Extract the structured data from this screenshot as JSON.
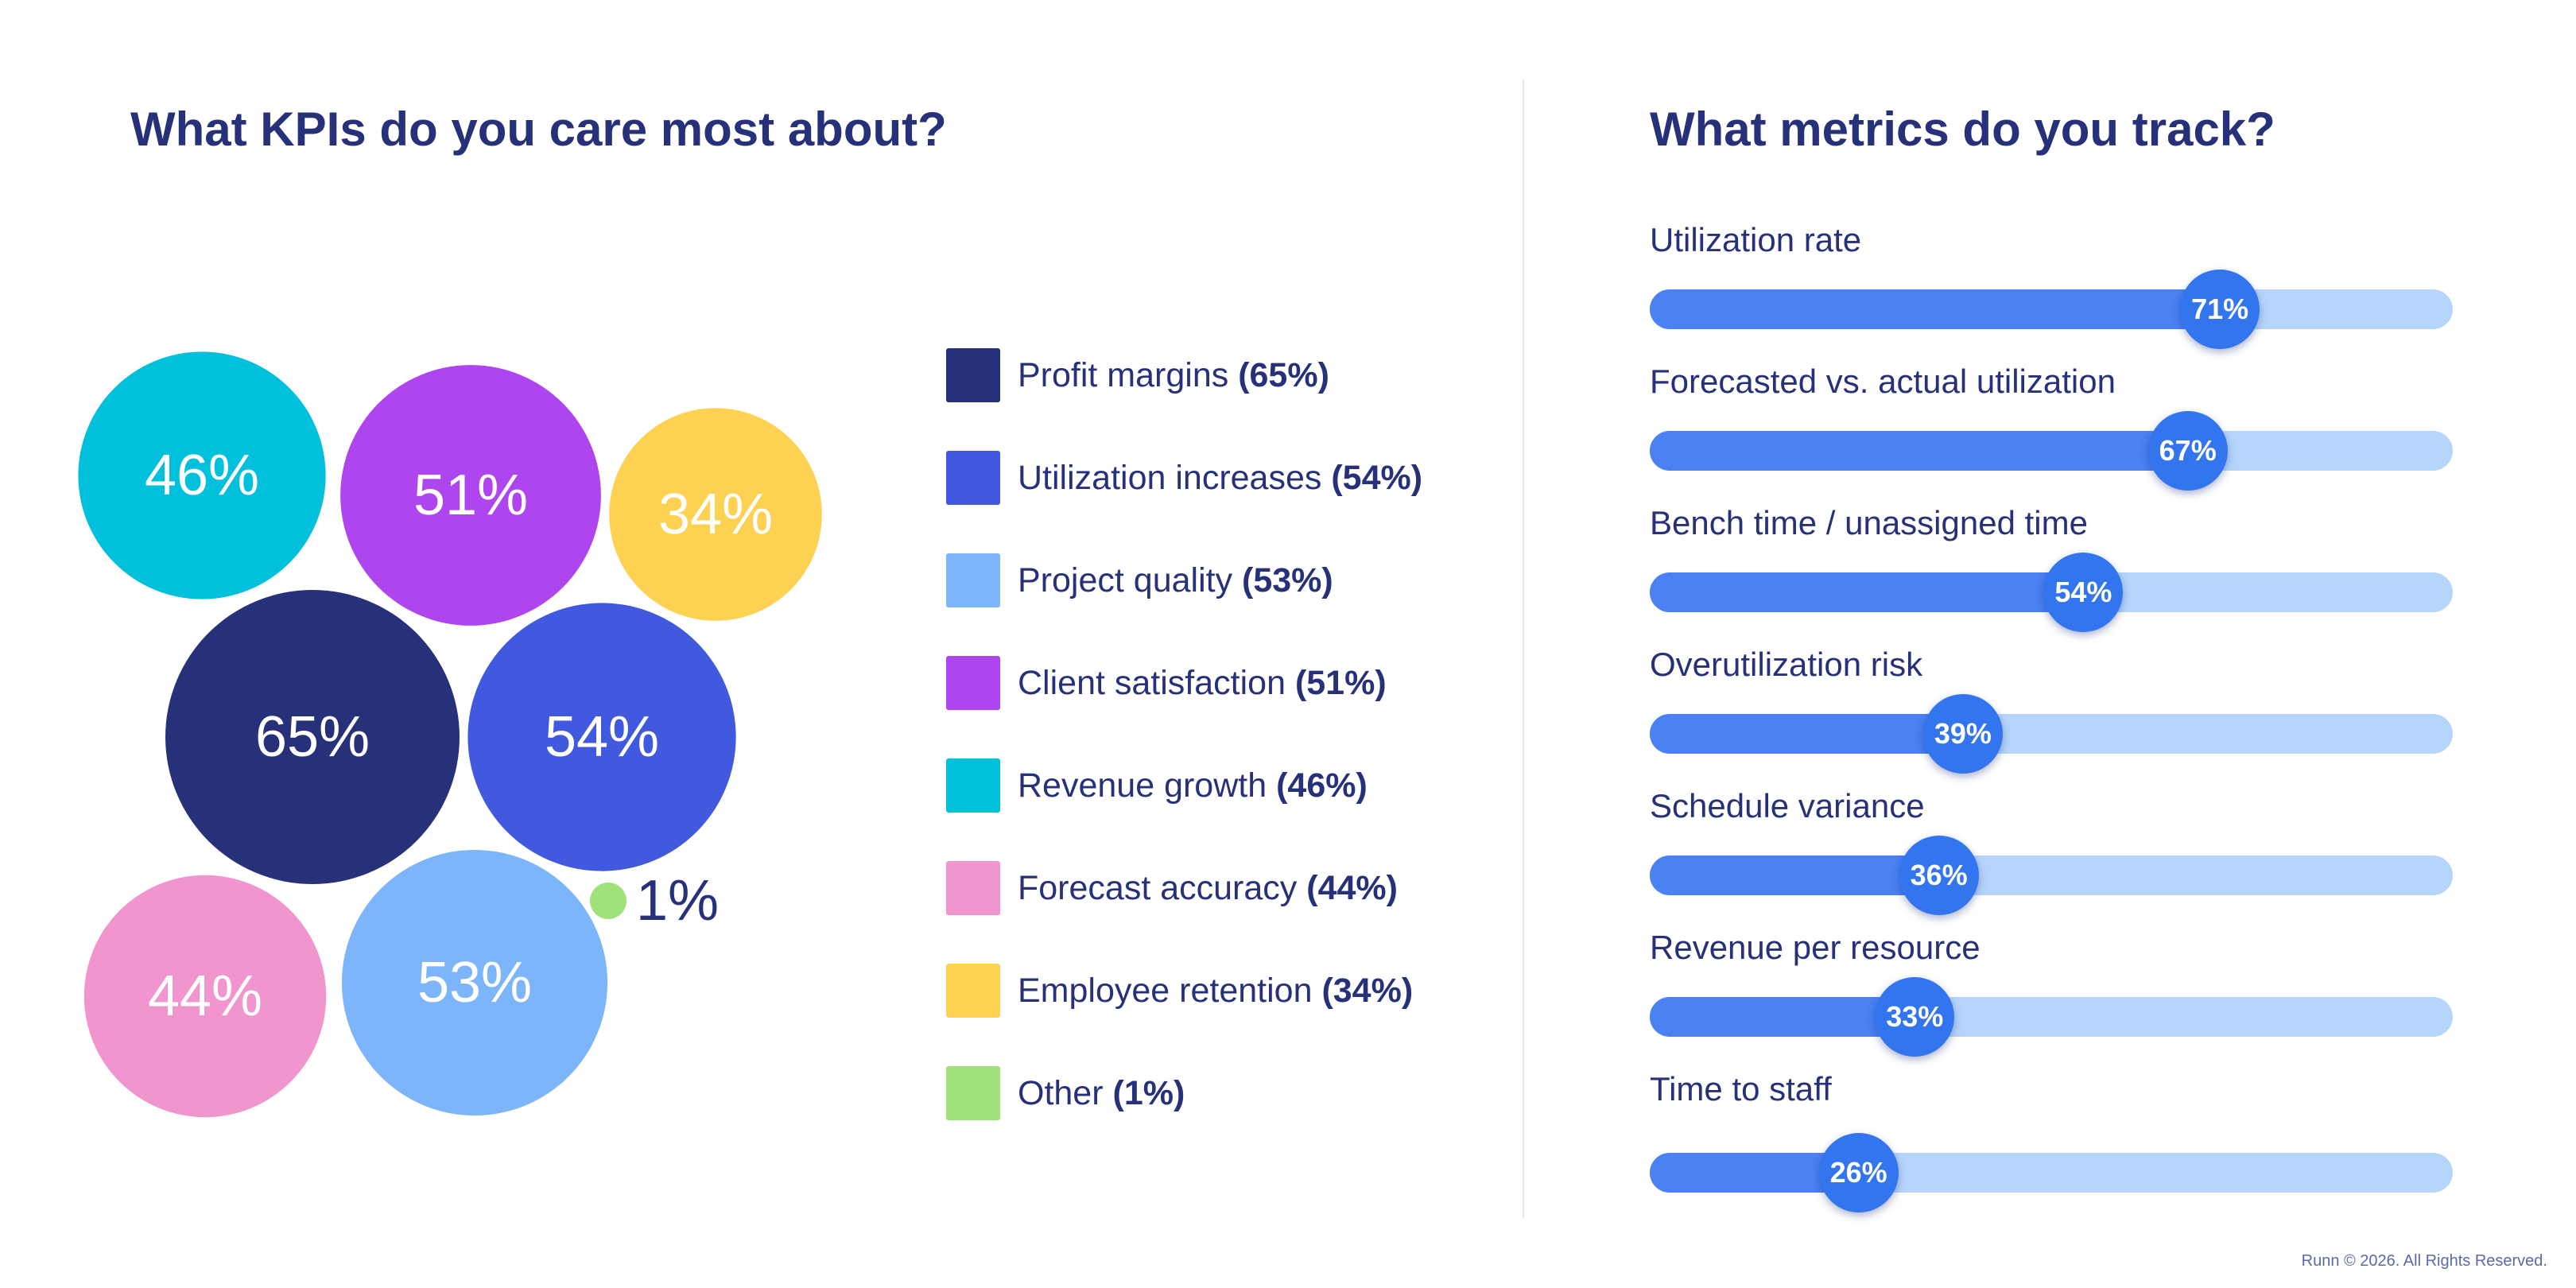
{
  "kpi_title": "What KPIs do you care most about?",
  "metrics_title": "What metrics do you track?",
  "footer": "Runn © 2026. All Rights Reserved.",
  "chart_data": [
    {
      "type": "bubble",
      "title": "What KPIs do you care most about?",
      "unit": "%",
      "items": [
        {
          "name": "Profit margins",
          "value": 65,
          "label": "65%",
          "legend": "(65%)",
          "color": "#27317a",
          "text_color": "#ffffff"
        },
        {
          "name": "Utilization increases",
          "value": 54,
          "label": "54%",
          "legend": "(54%)",
          "color": "#4159de",
          "text_color": "#ffffff"
        },
        {
          "name": "Project quality",
          "value": 53,
          "label": "53%",
          "legend": "(53%)",
          "color": "#7db5fb",
          "text_color": "#ffffff"
        },
        {
          "name": "Client satisfaction",
          "value": 51,
          "label": "51%",
          "legend": "(51%)",
          "color": "#ae45ef",
          "text_color": "#ffffff"
        },
        {
          "name": "Revenue growth",
          "value": 46,
          "label": "46%",
          "legend": "(46%)",
          "color": "#00c0dc",
          "text_color": "#ffffff"
        },
        {
          "name": "Forecast accuracy",
          "value": 44,
          "label": "44%",
          "legend": "(44%)",
          "color": "#f095cd",
          "text_color": "#ffffff"
        },
        {
          "name": "Employee retention",
          "value": 34,
          "label": "34%",
          "legend": "(34%)",
          "color": "#fdd151",
          "text_color": "#ffffff"
        },
        {
          "name": "Other",
          "value": 1,
          "label": "1%",
          "legend": "(1%)",
          "color": "#a0e27a",
          "text_color": "#27317a"
        }
      ]
    },
    {
      "type": "bar",
      "orientation": "horizontal",
      "title": "What metrics do you track?",
      "unit": "%",
      "xlim": [
        0,
        100
      ],
      "series": [
        {
          "name": "Utilization rate",
          "value": 71,
          "label": "71%"
        },
        {
          "name": "Forecasted vs. actual utilization",
          "value": 67,
          "label": "67%"
        },
        {
          "name": "Bench time / unassigned time",
          "value": 54,
          "label": "54%"
        },
        {
          "name": "Overutilization risk",
          "value": 39,
          "label": "39%"
        },
        {
          "name": "Schedule variance",
          "value": 36,
          "label": "36%"
        },
        {
          "name": "Revenue per resource",
          "value": 33,
          "label": "33%"
        },
        {
          "name": "Time to staff",
          "value": 26,
          "label": "26%"
        }
      ]
    }
  ]
}
